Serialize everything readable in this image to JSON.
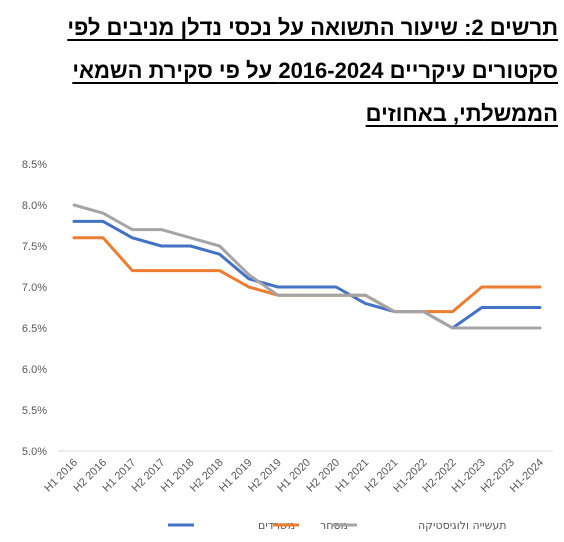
{
  "title": "תרשים 2: שיעור התשואה על נכסי נדלן מניבים לפי סקטורים עיקריים 2016-2024 על פי סקירת השמאי הממשלתי, באחוזים",
  "chart_data": {
    "type": "line",
    "title": "תרשים 2: שיעור התשואה על נכסי נדלן מניבים לפי סקטורים עיקריים 2016-2024 על פי סקירת השמאי הממשלתי, באחוזים",
    "xlabel": "",
    "ylabel": "",
    "ylim": [
      5.0,
      8.5
    ],
    "y_ticks": [
      "5.0%",
      "5.5%",
      "6.0%",
      "6.5%",
      "7.0%",
      "7.5%",
      "8.0%",
      "8.5%"
    ],
    "grid": false,
    "legend_position": "bottom-center",
    "categories": [
      "H1 2016",
      "H2 2016",
      "H1 2017",
      "H2 2017",
      "H1 2018",
      "H2 2018",
      "H1 2019",
      "H2 2019",
      "H1 2020",
      "H2 2020",
      "H1 2021",
      "H2 2021",
      "H1-2022",
      "H2-2022",
      "H1-2023",
      "H2-2023",
      "H1-2024"
    ],
    "series": [
      {
        "name": "משרדים",
        "color": "#4472C4",
        "values": [
          7.8,
          7.8,
          7.6,
          7.5,
          7.5,
          7.4,
          7.1,
          7.0,
          7.0,
          7.0,
          6.8,
          6.7,
          6.7,
          6.5,
          6.75,
          6.75,
          6.75
        ]
      },
      {
        "name": "מסחר",
        "color": "#ED7D31",
        "values": [
          7.6,
          7.6,
          7.2,
          7.2,
          7.2,
          7.2,
          7.0,
          6.9,
          6.9,
          6.9,
          6.9,
          6.7,
          6.7,
          6.7,
          7.0,
          7.0,
          7.0
        ]
      },
      {
        "name": "תעשייה ולוגיסטיקה",
        "color": "#A5A5A5",
        "values": [
          8.0,
          7.9,
          7.7,
          7.7,
          7.6,
          7.5,
          7.15,
          6.9,
          6.9,
          6.9,
          6.9,
          6.7,
          6.7,
          6.5,
          6.5,
          6.5,
          6.5
        ]
      }
    ]
  }
}
